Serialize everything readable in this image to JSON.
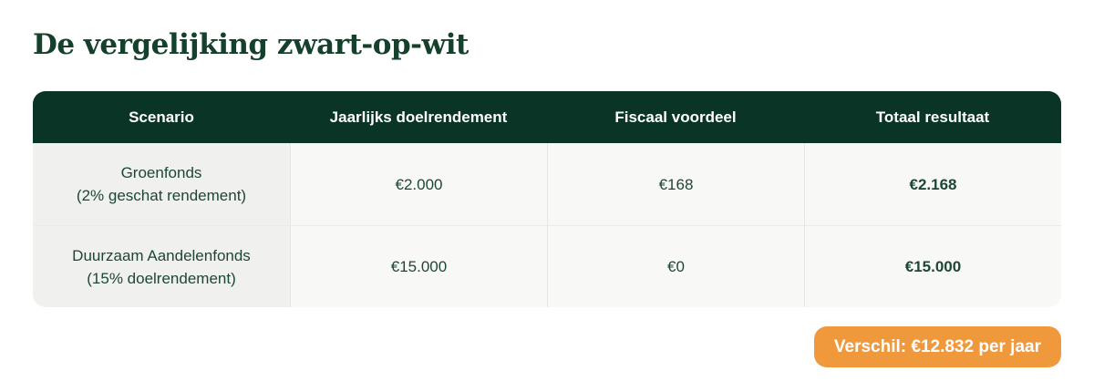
{
  "page": {
    "title": "De vergelijking zwart-op-wit"
  },
  "colors": {
    "title_text": "#15402C",
    "header_bg": "#0A3526",
    "header_text": "#FFFFFF",
    "cell_text": "#1D4735",
    "first_col_bg": "#F0F0EF",
    "cell_bg": "#F8F8F7",
    "divider": "#E6E6E4",
    "badge_bg": "#F0993C",
    "badge_text": "#FFFFFF"
  },
  "table": {
    "headers": [
      "Scenario",
      "Jaarlijks doelrendement",
      "Fiscaal voordeel",
      "Totaal resultaat"
    ],
    "rows": [
      {
        "scenario_line1": "Groenfonds",
        "scenario_line2": "(2% geschat rendement)",
        "doelrendement": "€2.000",
        "fiscaal_voordeel": "€168",
        "totaal_resultaat": "€2.168"
      },
      {
        "scenario_line1": "Duurzaam Aandelenfonds",
        "scenario_line2": "(15% doelrendement)",
        "doelrendement": "€15.000",
        "fiscaal_voordeel": "€0",
        "totaal_resultaat": "€15.000"
      }
    ]
  },
  "badge": {
    "label": "Verschil: €12.832 per jaar"
  },
  "chart_data": {
    "type": "table",
    "title": "De vergelijking zwart-op-wit",
    "columns": [
      "Scenario",
      "Jaarlijks doelrendement",
      "Fiscaal voordeel",
      "Totaal resultaat"
    ],
    "rows": [
      [
        "Groenfonds (2% geschat rendement)",
        "€2.000",
        "€168",
        "€2.168"
      ],
      [
        "Duurzaam Aandelenfonds (15% doelrendement)",
        "€15.000",
        "€0",
        "€15.000"
      ]
    ],
    "annotation": "Verschil: €12.832 per jaar"
  }
}
